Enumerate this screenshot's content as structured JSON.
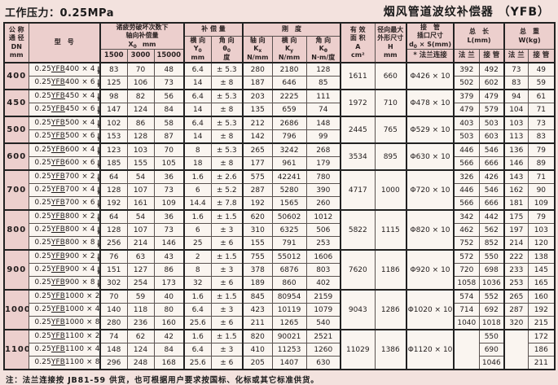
{
  "page": {
    "pressure_label": "工作压力：0.25MPa",
    "product_title": "烟风管道波纹补偿器 （YFB）",
    "footnote": "注：法兰连接按 JB81-59 供货，也可根据用户要求按国标、化标或其它标准供货。"
  },
  "colors": {
    "header_pink": "#eccfcd",
    "cell_white": "#faf5f0",
    "page_bg": "#f3e2de",
    "grid": "#5a5250"
  },
  "header": {
    "dn_lines": [
      "公 称",
      "通 径",
      "DN",
      "mm"
    ],
    "model_label": "型　号",
    "fatigue": {
      "line1": "诸疲劳破坏次数下",
      "line2": "轴向补偿量",
      "sym": "X",
      "sub": "0",
      "unit": "mm",
      "cycles": [
        "1500",
        "3000",
        "15000"
      ]
    },
    "compensation": {
      "title": "补 偿 量",
      "cols": [
        {
          "label": "横 向",
          "sym": "Y",
          "sub": "0",
          "unit": "mm"
        },
        {
          "label": "角 向",
          "sym": "θ",
          "sub": "0",
          "unit": "度"
        }
      ]
    },
    "stiffness": {
      "title": "刚　度",
      "cols": [
        {
          "label": "轴 向",
          "sym": "K",
          "sub": "x",
          "unit": "N/mm"
        },
        {
          "label": "横 向",
          "sym": "K",
          "sub": "y",
          "unit": "N/mm"
        },
        {
          "label": "角 向",
          "sym": "K",
          "sub": "θ",
          "unit": "N·m/度"
        }
      ]
    },
    "area_lines": [
      "有 效",
      "面 积",
      "A",
      "cm²"
    ],
    "radial_lines": [
      "径向最大",
      "外形尺寸",
      "H",
      "mm"
    ],
    "pipe": {
      "line1": "接　管",
      "line2": "插口尺寸",
      "sym": "d",
      "sub": "0",
      "rest": " × S(mm)",
      "sub_header": "* 法兰连接"
    },
    "length": {
      "title": "总　长",
      "unit": "L(mm)",
      "cols": [
        "法 兰",
        "接 管"
      ]
    },
    "weight": {
      "title": "总　重",
      "unit": "W(kg)",
      "cols": [
        "法 兰",
        "接 管"
      ]
    }
  },
  "model": {
    "prefix": "0.25",
    "series": "YFB",
    "jf_top": "J",
    "jf_bottom": "F"
  },
  "groups": [
    {
      "dn": "400",
      "area": "1611",
      "h": "660",
      "pipe": "Φ426 × 10",
      "rows": [
        {
          "size": "400 × 4",
          "x1500": "83",
          "x3000": "70",
          "x15000": "48",
          "lateral": "6.4",
          "angular": "± 5.3",
          "kx": "280",
          "ky": "2180",
          "ka": "128",
          "l_flange": "392",
          "l_pipe": "492",
          "w_flange": "73",
          "w_pipe": "49"
        },
        {
          "size": "400 × 6",
          "x1500": "125",
          "x3000": "106",
          "x15000": "73",
          "lateral": "14",
          "angular": "± 8",
          "kx": "187",
          "ky": "646",
          "ka": "85",
          "l_flange": "502",
          "l_pipe": "602",
          "w_flange": "83",
          "w_pipe": "59"
        }
      ]
    },
    {
      "dn": "450",
      "area": "1972",
      "h": "710",
      "pipe": "Φ478 × 10",
      "rows": [
        {
          "size": "450 × 4",
          "x1500": "98",
          "x3000": "82",
          "x15000": "56",
          "lateral": "6.4",
          "angular": "± 5.3",
          "kx": "203",
          "ky": "2225",
          "ka": "111",
          "l_flange": "379",
          "l_pipe": "479",
          "w_flange": "94",
          "w_pipe": "61"
        },
        {
          "size": "450 × 6",
          "x1500": "147",
          "x3000": "124",
          "x15000": "84",
          "lateral": "14",
          "angular": "± 8",
          "kx": "135",
          "ky": "659",
          "ka": "74",
          "l_flange": "479",
          "l_pipe": "579",
          "w_flange": "104",
          "w_pipe": "71"
        }
      ]
    },
    {
      "dn": "500",
      "area": "2445",
      "h": "765",
      "pipe": "Φ529 × 10",
      "rows": [
        {
          "size": "500 × 4",
          "x1500": "102",
          "x3000": "86",
          "x15000": "58",
          "lateral": "6.4",
          "angular": "± 5.3",
          "kx": "212",
          "ky": "2686",
          "ka": "148",
          "l_flange": "403",
          "l_pipe": "503",
          "w_flange": "103",
          "w_pipe": "73"
        },
        {
          "size": "500 × 6",
          "x1500": "153",
          "x3000": "128",
          "x15000": "87",
          "lateral": "14",
          "angular": "± 8",
          "kx": "142",
          "ky": "796",
          "ka": "99",
          "l_flange": "503",
          "l_pipe": "603",
          "w_flange": "113",
          "w_pipe": "83"
        }
      ]
    },
    {
      "dn": "600",
      "area": "3534",
      "h": "895",
      "pipe": "Φ630 × 10",
      "rows": [
        {
          "size": "600 × 4",
          "x1500": "123",
          "x3000": "103",
          "x15000": "70",
          "lateral": "8",
          "angular": "± 5.3",
          "kx": "265",
          "ky": "3242",
          "ka": "268",
          "l_flange": "446",
          "l_pipe": "546",
          "w_flange": "136",
          "w_pipe": "79"
        },
        {
          "size": "600 × 6",
          "x1500": "185",
          "x3000": "155",
          "x15000": "105",
          "lateral": "18",
          "angular": "± 8",
          "kx": "177",
          "ky": "961",
          "ka": "179",
          "l_flange": "566",
          "l_pipe": "666",
          "w_flange": "146",
          "w_pipe": "89"
        }
      ]
    },
    {
      "dn": "700",
      "area": "4717",
      "h": "1000",
      "pipe": "Φ720 × 10",
      "rows": [
        {
          "size": "700 × 2",
          "x1500": "64",
          "x3000": "54",
          "x15000": "36",
          "lateral": "1.6",
          "angular": "± 2.6",
          "kx": "575",
          "ky": "42241",
          "ka": "780",
          "l_flange": "326",
          "l_pipe": "426",
          "w_flange": "143",
          "w_pipe": "71"
        },
        {
          "size": "700 × 4",
          "x1500": "128",
          "x3000": "107",
          "x15000": "73",
          "lateral": "6",
          "angular": "± 5.2",
          "kx": "287",
          "ky": "5280",
          "ka": "390",
          "l_flange": "446",
          "l_pipe": "546",
          "w_flange": "162",
          "w_pipe": "90"
        },
        {
          "size": "700 × 6",
          "x1500": "192",
          "x3000": "161",
          "x15000": "109",
          "lateral": "14.4",
          "angular": "± 7.8",
          "kx": "192",
          "ky": "1565",
          "ka": "260",
          "l_flange": "566",
          "l_pipe": "666",
          "w_flange": "181",
          "w_pipe": "109"
        }
      ]
    },
    {
      "dn": "800",
      "area": "5822",
      "h": "1115",
      "pipe": "Φ820 × 10",
      "rows": [
        {
          "size": "800 × 2",
          "x1500": "64",
          "x3000": "54",
          "x15000": "36",
          "lateral": "1.6",
          "angular": "± 1.5",
          "kx": "620",
          "ky": "50602",
          "ka": "1012",
          "l_flange": "342",
          "l_pipe": "442",
          "w_flange": "175",
          "w_pipe": "79"
        },
        {
          "size": "800 × 4",
          "x1500": "128",
          "x3000": "107",
          "x15000": "73",
          "lateral": "6",
          "angular": "± 3",
          "kx": "310",
          "ky": "6325",
          "ka": "506",
          "l_flange": "462",
          "l_pipe": "562",
          "w_flange": "197",
          "w_pipe": "103"
        },
        {
          "size": "800 × 8",
          "x1500": "256",
          "x3000": "214",
          "x15000": "146",
          "lateral": "25",
          "angular": "± 6",
          "kx": "155",
          "ky": "791",
          "ka": "253",
          "l_flange": "752",
          "l_pipe": "852",
          "w_flange": "214",
          "w_pipe": "120"
        }
      ]
    },
    {
      "dn": "900",
      "area": "7620",
      "h": "1186",
      "pipe": "Φ920 × 10",
      "rows": [
        {
          "size": "900 × 2",
          "x1500": "76",
          "x3000": "63",
          "x15000": "43",
          "lateral": "2",
          "angular": "± 1.5",
          "kx": "755",
          "ky": "55012",
          "ka": "1606",
          "l_flange": "572",
          "l_pipe": "550",
          "w_flange": "222",
          "w_pipe": "138"
        },
        {
          "size": "900 × 4",
          "x1500": "151",
          "x3000": "127",
          "x15000": "86",
          "lateral": "8",
          "angular": "± 3",
          "kx": "378",
          "ky": "6876",
          "ka": "803",
          "l_flange": "720",
          "l_pipe": "698",
          "w_flange": "233",
          "w_pipe": "145"
        },
        {
          "size": "900 × 8",
          "x1500": "302",
          "x3000": "254",
          "x15000": "173",
          "lateral": "32",
          "angular": "± 6",
          "kx": "189",
          "ky": "860",
          "ka": "402",
          "l_flange": "1058",
          "l_pipe": "1036",
          "w_flange": "253",
          "w_pipe": "165"
        }
      ]
    },
    {
      "dn": "1000",
      "area": "9043",
      "h": "1286",
      "pipe": "Φ1020 × 10",
      "rows": [
        {
          "size": "1000 × 2",
          "x1500": "70",
          "x3000": "59",
          "x15000": "40",
          "lateral": "1.6",
          "angular": "± 1.5",
          "kx": "845",
          "ky": "80954",
          "ka": "2159",
          "l_flange": "574",
          "l_pipe": "552",
          "w_flange": "265",
          "w_pipe": "160"
        },
        {
          "size": "1000 × 4",
          "x1500": "140",
          "x3000": "118",
          "x15000": "80",
          "lateral": "6.4",
          "angular": "± 3",
          "kx": "423",
          "ky": "10119",
          "ka": "1079",
          "l_flange": "714",
          "l_pipe": "692",
          "w_flange": "287",
          "w_pipe": "192"
        },
        {
          "size": "1000 × 8",
          "x1500": "280",
          "x3000": "236",
          "x15000": "160",
          "lateral": "25.6",
          "angular": "± 6",
          "kx": "211",
          "ky": "1265",
          "ka": "540",
          "l_flange": "1040",
          "l_pipe": "1018",
          "w_flange": "320",
          "w_pipe": "215"
        }
      ]
    },
    {
      "dn": "1100",
      "area": "11029",
      "h": "1386",
      "pipe": "Φ1120 × 10",
      "merge_flange": true,
      "rows": [
        {
          "size": "1100 × 2",
          "x1500": "74",
          "x3000": "62",
          "x15000": "42",
          "lateral": "1.6",
          "angular": "± 1.5",
          "kx": "820",
          "ky": "90021",
          "ka": "2521",
          "l_pipe": "550",
          "w_pipe": "172"
        },
        {
          "size": "1100 × 4",
          "x1500": "148",
          "x3000": "124",
          "x15000": "84",
          "lateral": "6.4",
          "angular": "± 3",
          "kx": "410",
          "ky": "11253",
          "ka": "1260",
          "l_pipe": "690",
          "w_pipe": "186"
        },
        {
          "size": "1100 × 8",
          "x1500": "296",
          "x3000": "248",
          "x15000": "168",
          "lateral": "25.6",
          "angular": "± 6",
          "kx": "205",
          "ky": "1407",
          "ka": "630",
          "l_pipe": "1046",
          "w_pipe": "211"
        }
      ]
    }
  ]
}
